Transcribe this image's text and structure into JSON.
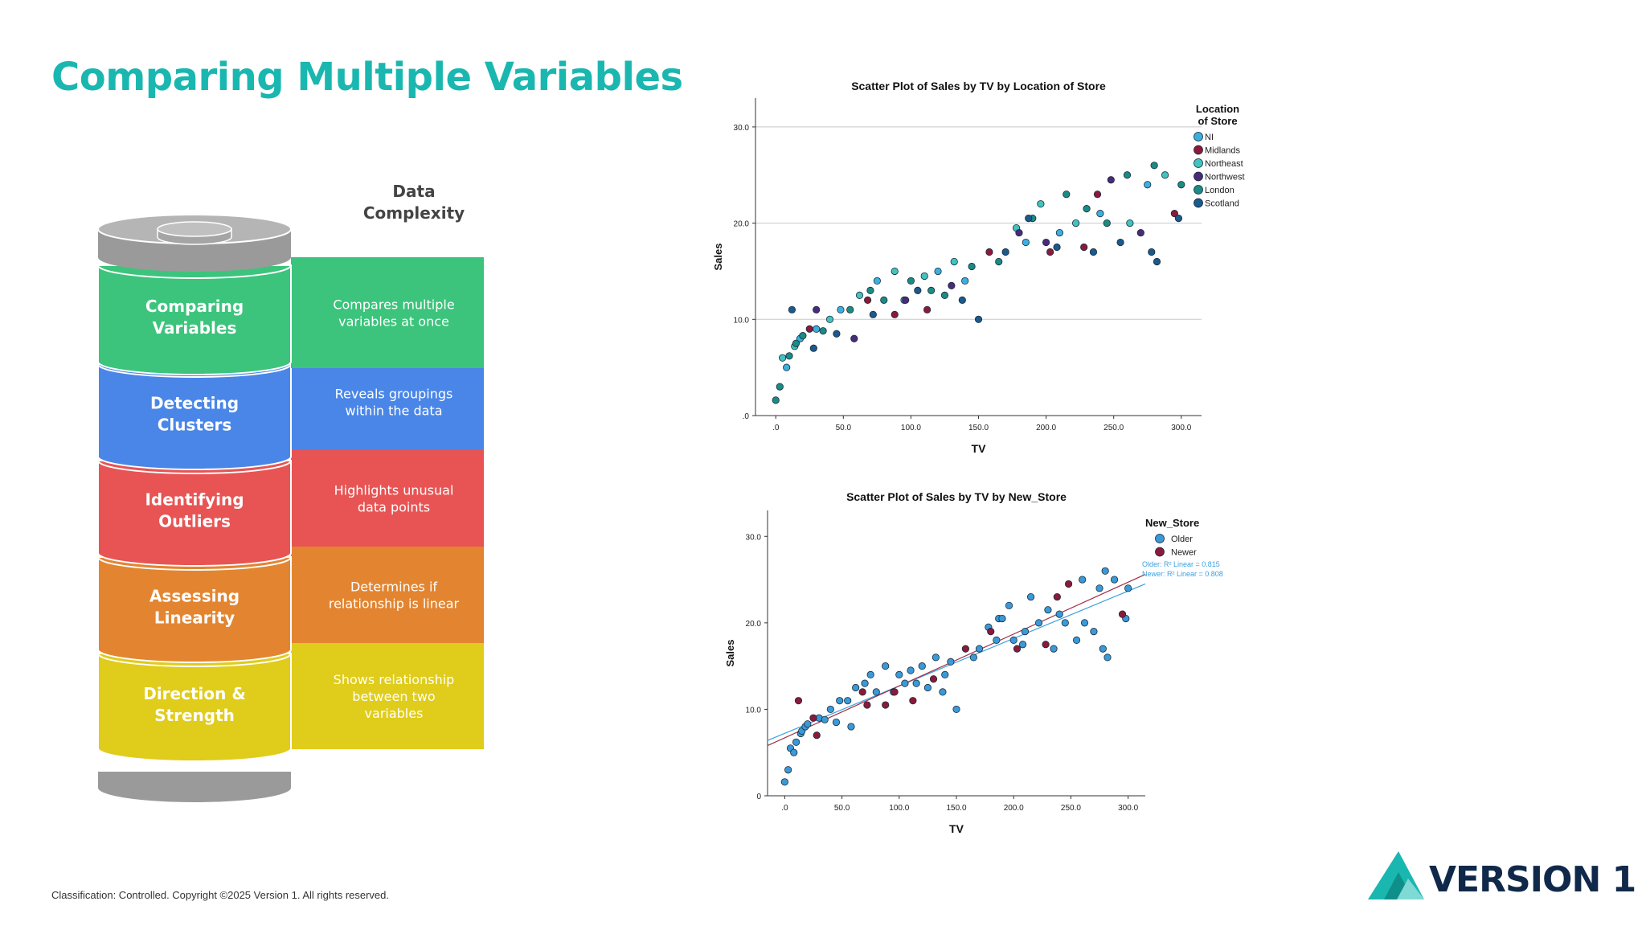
{
  "slide": {
    "title": "Comparing Multiple Variables",
    "footer": "Classification: Controlled. Copyright ©2025 Version 1. All rights reserved.",
    "logo_text": "VERSION 1",
    "accent_color": "#1ab7b0"
  },
  "stack": {
    "header_line1": "Data",
    "header_line2": "Complexity",
    "layers": [
      {
        "label1": "Comparing",
        "label2": "Variables",
        "desc": [
          "Compares multiple",
          "variables at once"
        ],
        "color": "#3cc47c"
      },
      {
        "label1": "Detecting",
        "label2": "Clusters",
        "desc": [
          "Reveals groupings",
          "within the data"
        ],
        "color": "#4a86e8"
      },
      {
        "label1": "Identifying",
        "label2": "Outliers",
        "desc": [
          "Highlights unusual",
          "data points"
        ],
        "color": "#e85454"
      },
      {
        "label1": "Assessing",
        "label2": "Linearity",
        "desc": [
          "Determines if",
          "relationship is linear"
        ],
        "color": "#e38530"
      },
      {
        "label1": "Direction &",
        "label2": "Strength",
        "desc": [
          "Shows relationship",
          "between two",
          "variables"
        ],
        "color": "#e0cc1a"
      }
    ]
  },
  "chart_data": [
    {
      "type": "scatter",
      "title": "Scatter Plot of Sales by TV by Location of Store",
      "xlabel": "TV",
      "ylabel": "Sales",
      "xlim": [
        -15,
        315
      ],
      "ylim": [
        0,
        33
      ],
      "xticks": [
        ".0",
        "50.0",
        "100.0",
        "150.0",
        "200.0",
        "250.0",
        "300.0"
      ],
      "yticks": [
        ".0",
        "10.0",
        "20.0",
        "30.0"
      ],
      "grid": "horizontal at 10, 20, 30",
      "legend_title_line1": "Location",
      "legend_title_line2": "of Store",
      "legend_placement": "top-right, outside",
      "series": [
        {
          "name": "NI",
          "color": "#3ab0e0",
          "points": [
            [
              8,
              5
            ],
            [
              18,
              8
            ],
            [
              30,
              9
            ],
            [
              48,
              11
            ],
            [
              75,
              14
            ],
            [
              95,
              12
            ],
            [
              120,
              15
            ],
            [
              140,
              14
            ],
            [
              185,
              18
            ],
            [
              210,
              19
            ],
            [
              240,
              21
            ],
            [
              275,
              24
            ]
          ]
        },
        {
          "name": "Midlands",
          "color": "#8b1a3a",
          "points": [
            [
              25,
              9
            ],
            [
              68,
              12
            ],
            [
              88,
              10.5
            ],
            [
              112,
              11
            ],
            [
              158,
              17
            ],
            [
              203,
              17
            ],
            [
              228,
              17.5
            ],
            [
              238,
              23
            ],
            [
              295,
              21
            ]
          ]
        },
        {
          "name": "Northeast",
          "color": "#40c4c0",
          "points": [
            [
              5,
              6
            ],
            [
              14,
              7.2
            ],
            [
              40,
              10
            ],
            [
              62,
              12.5
            ],
            [
              88,
              15
            ],
            [
              110,
              14.5
            ],
            [
              132,
              16
            ],
            [
              178,
              19.5
            ],
            [
              196,
              22
            ],
            [
              222,
              20
            ],
            [
              262,
              20
            ],
            [
              288,
              25
            ]
          ]
        },
        {
          "name": "Northwest",
          "color": "#4a2a7a",
          "points": [
            [
              30,
              11
            ],
            [
              58,
              8
            ],
            [
              96,
              12
            ],
            [
              130,
              13.5
            ],
            [
              180,
              19
            ],
            [
              200,
              18
            ],
            [
              248,
              24.5
            ],
            [
              270,
              19
            ]
          ]
        },
        {
          "name": "London",
          "color": "#1a8c84",
          "points": [
            [
              0,
              1.6
            ],
            [
              3,
              3
            ],
            [
              10,
              6.2
            ],
            [
              15,
              7.5
            ],
            [
              20,
              8.3
            ],
            [
              35,
              8.8
            ],
            [
              55,
              11
            ],
            [
              70,
              13
            ],
            [
              80,
              12
            ],
            [
              100,
              14
            ],
            [
              115,
              13
            ],
            [
              125,
              12.5
            ],
            [
              145,
              15.5
            ],
            [
              165,
              16
            ],
            [
              190,
              20.5
            ],
            [
              215,
              23
            ],
            [
              230,
              21.5
            ],
            [
              245,
              20
            ],
            [
              260,
              25
            ],
            [
              280,
              26
            ],
            [
              300,
              24
            ]
          ]
        },
        {
          "name": "Scotland",
          "color": "#1a5a8c",
          "points": [
            [
              12,
              11
            ],
            [
              28,
              7
            ],
            [
              45,
              8.5
            ],
            [
              72,
              10.5
            ],
            [
              105,
              13
            ],
            [
              138,
              12
            ],
            [
              150,
              10
            ],
            [
              170,
              17
            ],
            [
              187,
              20.5
            ],
            [
              208,
              17.5
            ],
            [
              235,
              17
            ],
            [
              255,
              18
            ],
            [
              278,
              17
            ],
            [
              298,
              20.5
            ],
            [
              282,
              16
            ]
          ]
        }
      ]
    },
    {
      "type": "scatter",
      "title": "Scatter Plot of Sales by TV by New_Store",
      "xlabel": "TV",
      "ylabel": "Sales",
      "xlim": [
        -15,
        315
      ],
      "ylim": [
        0,
        33
      ],
      "xticks": [
        ".0",
        "50.0",
        "100.0",
        "150.0",
        "200.0",
        "250.0",
        "300.0"
      ],
      "yticks": [
        "0",
        "10.0",
        "20.0",
        "30.0"
      ],
      "legend_title": "New_Store",
      "legend_placement": "top-right, outside",
      "fit_labels": [
        "Older: R² Linear = 0.815",
        "Newer: R² Linear = 0.808"
      ],
      "fit_lines": [
        {
          "name": "Older",
          "color": "#3aa0e0",
          "x": [
            -15,
            315
          ],
          "y": [
            6.4,
            24.5
          ]
        },
        {
          "name": "Newer",
          "color": "#a0304a",
          "x": [
            -15,
            315
          ],
          "y": [
            5.8,
            25.6
          ]
        }
      ],
      "series": [
        {
          "name": "Older",
          "color": "#3a9ad8",
          "points": [
            [
              0,
              1.6
            ],
            [
              3,
              3
            ],
            [
              5,
              5.5
            ],
            [
              8,
              5
            ],
            [
              10,
              6.2
            ],
            [
              14,
              7.2
            ],
            [
              15,
              7.5
            ],
            [
              18,
              8
            ],
            [
              20,
              8.3
            ],
            [
              30,
              9
            ],
            [
              35,
              8.8
            ],
            [
              40,
              10
            ],
            [
              45,
              8.5
            ],
            [
              48,
              11
            ],
            [
              55,
              11
            ],
            [
              58,
              8
            ],
            [
              62,
              12.5
            ],
            [
              70,
              13
            ],
            [
              75,
              14
            ],
            [
              80,
              12
            ],
            [
              88,
              15
            ],
            [
              95,
              12
            ],
            [
              100,
              14
            ],
            [
              105,
              13
            ],
            [
              110,
              14.5
            ],
            [
              115,
              13
            ],
            [
              120,
              15
            ],
            [
              125,
              12.5
            ],
            [
              132,
              16
            ],
            [
              138,
              12
            ],
            [
              140,
              14
            ],
            [
              145,
              15.5
            ],
            [
              150,
              10
            ],
            [
              165,
              16
            ],
            [
              170,
              17
            ],
            [
              178,
              19.5
            ],
            [
              185,
              18
            ],
            [
              187,
              20.5
            ],
            [
              190,
              20.5
            ],
            [
              196,
              22
            ],
            [
              200,
              18
            ],
            [
              208,
              17.5
            ],
            [
              210,
              19
            ],
            [
              215,
              23
            ],
            [
              222,
              20
            ],
            [
              230,
              21.5
            ],
            [
              235,
              17
            ],
            [
              240,
              21
            ],
            [
              245,
              20
            ],
            [
              255,
              18
            ],
            [
              260,
              25
            ],
            [
              262,
              20
            ],
            [
              270,
              19
            ],
            [
              275,
              24
            ],
            [
              278,
              17
            ],
            [
              280,
              26
            ],
            [
              282,
              16
            ],
            [
              288,
              25
            ],
            [
              298,
              20.5
            ],
            [
              300,
              24
            ]
          ]
        },
        {
          "name": "Newer",
          "color": "#8b1a3a",
          "points": [
            [
              12,
              11
            ],
            [
              25,
              9
            ],
            [
              28,
              7
            ],
            [
              68,
              12
            ],
            [
              72,
              10.5
            ],
            [
              88,
              10.5
            ],
            [
              96,
              12
            ],
            [
              112,
              11
            ],
            [
              130,
              13.5
            ],
            [
              158,
              17
            ],
            [
              180,
              19
            ],
            [
              203,
              17
            ],
            [
              228,
              17.5
            ],
            [
              238,
              23
            ],
            [
              248,
              24.5
            ],
            [
              295,
              21
            ]
          ]
        }
      ]
    }
  ]
}
